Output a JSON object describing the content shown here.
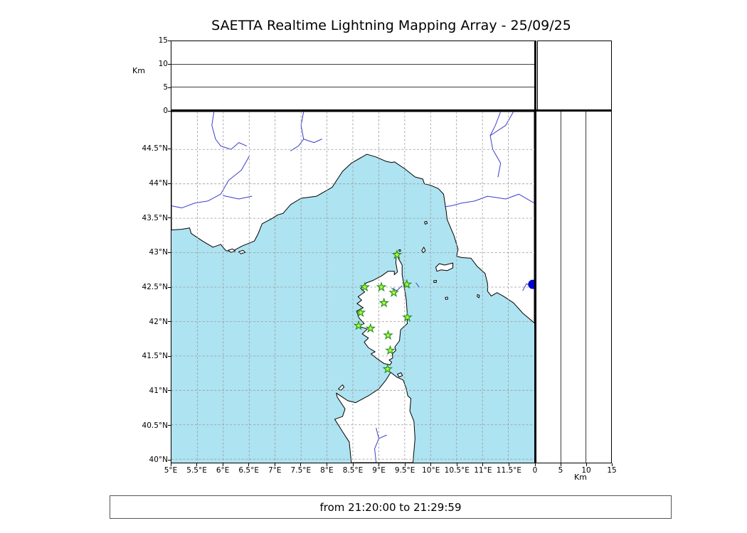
{
  "title": "SAETTA Realtime Lightning Mapping Array - 25/09/25",
  "footer": "from 21:20:00 to 21:29:59",
  "chart_data": {
    "type": "scatter",
    "title": "SAETTA Realtime Lightning Mapping Array - 25/09/25",
    "time_range": "from 21:20:00 to 21:29:59",
    "map": {
      "lon_range": [
        5,
        12
      ],
      "lat_range": [
        39.95,
        45.05
      ],
      "grid": "dashed",
      "lon_ticks": [
        {
          "label": "5°E",
          "value": 5
        },
        {
          "label": "5.5°E",
          "value": 5.5
        },
        {
          "label": "6°E",
          "value": 6
        },
        {
          "label": "6.5°E",
          "value": 6.5
        },
        {
          "label": "7°E",
          "value": 7
        },
        {
          "label": "7.5°E",
          "value": 7.5
        },
        {
          "label": "8°E",
          "value": 8
        },
        {
          "label": "8.5°E",
          "value": 8.5
        },
        {
          "label": "9°E",
          "value": 9
        },
        {
          "label": "9.5°E",
          "value": 9.5
        },
        {
          "label": "10°E",
          "value": 10
        },
        {
          "label": "10.5°E",
          "value": 10.5
        },
        {
          "label": "11°E",
          "value": 11
        },
        {
          "label": "11.5°E",
          "value": 11.5
        }
      ],
      "lat_ticks": [
        {
          "label": "44.5°N",
          "value": 44.5
        },
        {
          "label": "44°N",
          "value": 44
        },
        {
          "label": "43.5°N",
          "value": 43.5
        },
        {
          "label": "43°N",
          "value": 43
        },
        {
          "label": "42.5°N",
          "value": 42.5
        },
        {
          "label": "42°N",
          "value": 42
        },
        {
          "label": "41.5°N",
          "value": 41.5
        },
        {
          "label": "41°N",
          "value": 41
        },
        {
          "label": "40.5°N",
          "value": 40.5
        },
        {
          "label": "40°N",
          "value": 40
        }
      ]
    },
    "altitude_axis": {
      "label": "Km",
      "range": [
        0,
        15
      ],
      "ticks": [
        {
          "label": "0",
          "value": 0
        },
        {
          "label": "5",
          "value": 5
        },
        {
          "label": "10",
          "value": 10
        },
        {
          "label": "15",
          "value": 15
        }
      ],
      "gridlines": [
        5,
        10
      ]
    },
    "stations": [
      {
        "lon": 9.35,
        "lat": 42.97
      },
      {
        "lon": 8.73,
        "lat": 42.5
      },
      {
        "lon": 9.05,
        "lat": 42.5
      },
      {
        "lon": 9.54,
        "lat": 42.54
      },
      {
        "lon": 9.29,
        "lat": 42.42
      },
      {
        "lon": 9.1,
        "lat": 42.27
      },
      {
        "lon": 8.65,
        "lat": 42.13
      },
      {
        "lon": 9.55,
        "lat": 42.06
      },
      {
        "lon": 8.61,
        "lat": 41.94
      },
      {
        "lon": 8.84,
        "lat": 41.9
      },
      {
        "lon": 9.18,
        "lat": 41.8
      },
      {
        "lon": 9.22,
        "lat": 41.58
      },
      {
        "lon": 9.17,
        "lat": 41.31
      }
    ],
    "events": [
      {
        "lon": 11.97,
        "lat": 42.54
      }
    ],
    "colors": {
      "sea": "#aee3f1",
      "land": "#ffffff",
      "coast": "#000000",
      "river": "#3c3ccd",
      "grid": "#999999",
      "station_fill": "#adff2f",
      "station_stroke": "#228b22",
      "event": "#0000cd"
    }
  }
}
